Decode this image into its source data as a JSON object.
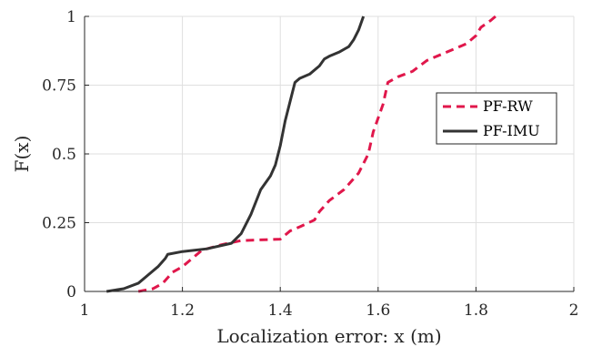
{
  "chart_data": {
    "type": "line",
    "title": "",
    "xlabel": "Localization error: x (m)",
    "ylabel": "F(x)",
    "xlim": [
      1,
      2
    ],
    "ylim": [
      0,
      1
    ],
    "x_ticks": [
      1,
      1.2,
      1.4,
      1.6,
      1.8,
      2
    ],
    "x_tick_labels": [
      "1",
      "1.2",
      "1.4",
      "1.6",
      "1.8",
      "2"
    ],
    "y_ticks": [
      0,
      0.25,
      0.5,
      0.75,
      1
    ],
    "y_tick_labels": [
      "0",
      "0.25",
      "0.5",
      "0.75",
      "1"
    ],
    "grid": true,
    "legend_position": "right",
    "series": [
      {
        "name": "PF-RW",
        "color": "#e0174b",
        "style": "dashed",
        "points": [
          [
            1.11,
            0.0
          ],
          [
            1.14,
            0.01
          ],
          [
            1.16,
            0.03
          ],
          [
            1.18,
            0.07
          ],
          [
            1.2,
            0.09
          ],
          [
            1.22,
            0.12
          ],
          [
            1.24,
            0.15
          ],
          [
            1.28,
            0.17
          ],
          [
            1.32,
            0.185
          ],
          [
            1.4,
            0.19
          ],
          [
            1.42,
            0.22
          ],
          [
            1.44,
            0.235
          ],
          [
            1.47,
            0.26
          ],
          [
            1.48,
            0.29
          ],
          [
            1.5,
            0.33
          ],
          [
            1.53,
            0.37
          ],
          [
            1.56,
            0.43
          ],
          [
            1.58,
            0.5
          ],
          [
            1.59,
            0.58
          ],
          [
            1.61,
            0.68
          ],
          [
            1.62,
            0.76
          ],
          [
            1.64,
            0.78
          ],
          [
            1.67,
            0.8
          ],
          [
            1.7,
            0.84
          ],
          [
            1.74,
            0.87
          ],
          [
            1.78,
            0.9
          ],
          [
            1.8,
            0.93
          ],
          [
            1.81,
            0.96
          ],
          [
            1.83,
            0.985
          ],
          [
            1.84,
            1.0
          ]
        ]
      },
      {
        "name": "PF-IMU",
        "color": "#333333",
        "style": "solid",
        "points": [
          [
            1.045,
            0.0
          ],
          [
            1.08,
            0.01
          ],
          [
            1.11,
            0.03
          ],
          [
            1.13,
            0.06
          ],
          [
            1.15,
            0.09
          ],
          [
            1.165,
            0.12
          ],
          [
            1.17,
            0.135
          ],
          [
            1.2,
            0.145
          ],
          [
            1.25,
            0.155
          ],
          [
            1.3,
            0.175
          ],
          [
            1.32,
            0.21
          ],
          [
            1.34,
            0.28
          ],
          [
            1.36,
            0.37
          ],
          [
            1.38,
            0.42
          ],
          [
            1.39,
            0.46
          ],
          [
            1.4,
            0.53
          ],
          [
            1.41,
            0.62
          ],
          [
            1.42,
            0.69
          ],
          [
            1.43,
            0.76
          ],
          [
            1.44,
            0.775
          ],
          [
            1.46,
            0.79
          ],
          [
            1.48,
            0.82
          ],
          [
            1.49,
            0.845
          ],
          [
            1.5,
            0.855
          ],
          [
            1.52,
            0.87
          ],
          [
            1.54,
            0.89
          ],
          [
            1.55,
            0.915
          ],
          [
            1.56,
            0.95
          ],
          [
            1.57,
            1.0
          ]
        ]
      }
    ]
  }
}
